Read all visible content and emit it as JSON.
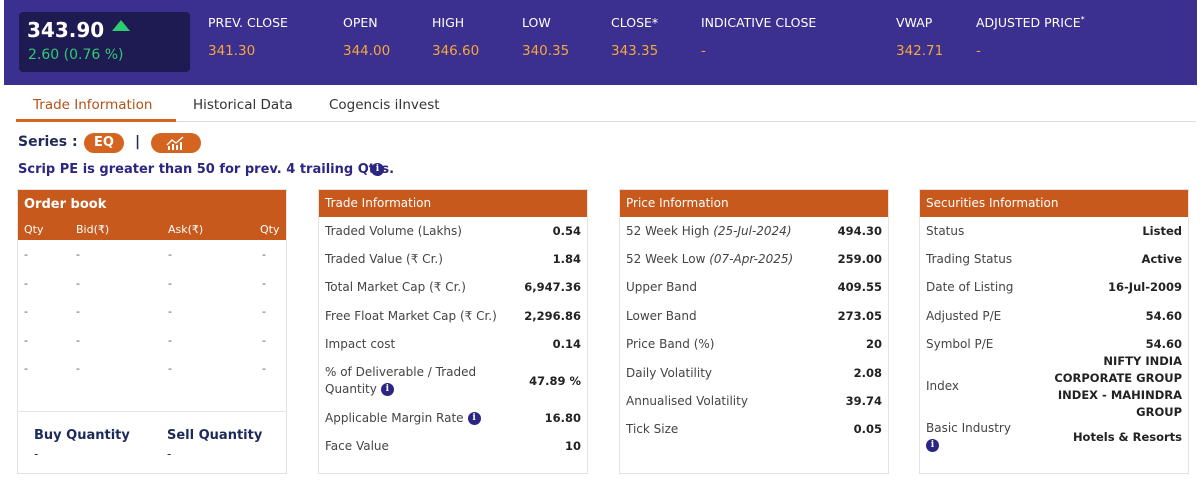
{
  "quote": {
    "last_price": "343.90",
    "change": "2.60 (0.76 %)",
    "items": [
      {
        "label": "PREV. CLOSE",
        "value": "341.30"
      },
      {
        "label": "OPEN",
        "value": "344.00"
      },
      {
        "label": "HIGH",
        "value": "346.60"
      },
      {
        "label": "LOW",
        "value": "340.35"
      },
      {
        "label": "CLOSE*",
        "value": "343.35"
      },
      {
        "label": "INDICATIVE CLOSE",
        "value": "-"
      },
      {
        "label": "VWAP",
        "value": "342.71"
      },
      {
        "label": "ADJUSTED PRICE",
        "value": "-",
        "sup": "*"
      }
    ]
  },
  "tabs": [
    "Trade Information",
    "Historical Data",
    "Cogencis iInvest"
  ],
  "series": {
    "label": "Series :",
    "badge": "EQ",
    "separator": "|",
    "note": "Scrip PE is greater than 50 for prev. 4 trailing Qtrs."
  },
  "order_book": {
    "title": "Order book",
    "columns": [
      "Qty",
      "Bid(₹)",
      "Ask(₹)",
      "Qty"
    ],
    "rows": [
      [
        "-",
        "-",
        "-",
        "-"
      ],
      [
        "-",
        "-",
        "-",
        "-"
      ],
      [
        "-",
        "-",
        "-",
        "-"
      ],
      [
        "-",
        "-",
        "-",
        "-"
      ],
      [
        "-",
        "-",
        "-",
        "-"
      ]
    ],
    "buy_quantity_label": "Buy Quantity",
    "buy_quantity_value": "-",
    "sell_quantity_label": "Sell Quantity",
    "sell_quantity_value": "-"
  },
  "trade_info": {
    "title": "Trade Information",
    "rows": [
      {
        "label": "Traded Volume (Lakhs)",
        "value": "0.54"
      },
      {
        "label": "Traded Value (₹ Cr.)",
        "value": "1.84"
      },
      {
        "label": "Total Market Cap (₹ Cr.)",
        "value": "6,947.36"
      },
      {
        "label": "Free Float Market Cap (₹ Cr.)",
        "value": "2,296.86"
      },
      {
        "label": "Impact cost",
        "value": "0.14"
      },
      {
        "label": "% of Deliverable / Traded Quantity",
        "value": "47.89 %"
      },
      {
        "label": "Applicable Margin Rate",
        "value": "16.80"
      },
      {
        "label": "Face Value",
        "value": "10"
      }
    ]
  },
  "price_info": {
    "title": "Price Information",
    "rows": [
      {
        "label": "52 Week High",
        "date": "(25-Jul-2024)",
        "value": "494.30"
      },
      {
        "label": "52 Week Low",
        "date": "(07-Apr-2025)",
        "value": "259.00"
      },
      {
        "label": "Upper Band",
        "value": "409.55"
      },
      {
        "label": "Lower Band",
        "value": "273.05"
      },
      {
        "label": "Price Band (%)",
        "value": "20"
      },
      {
        "label": "Daily Volatility",
        "value": "2.08"
      },
      {
        "label": "Annualised Volatility",
        "value": "39.74"
      },
      {
        "label": "Tick Size",
        "value": "0.05"
      }
    ]
  },
  "securities_info": {
    "title": "Securities Information",
    "rows": [
      {
        "label": "Status",
        "value": "Listed"
      },
      {
        "label": "Trading Status",
        "value": "Active"
      },
      {
        "label": "Date of Listing",
        "value": "16-Jul-2009"
      },
      {
        "label": "Adjusted P/E",
        "value": "54.60"
      },
      {
        "label": "Symbol P/E",
        "value": "54.60"
      },
      {
        "label": "Index",
        "value": "NIFTY INDIA CORPORATE GROUP INDEX - MAHINDRA GROUP"
      },
      {
        "label": "Basic Industry",
        "value": "Hotels & Resorts"
      }
    ]
  }
}
